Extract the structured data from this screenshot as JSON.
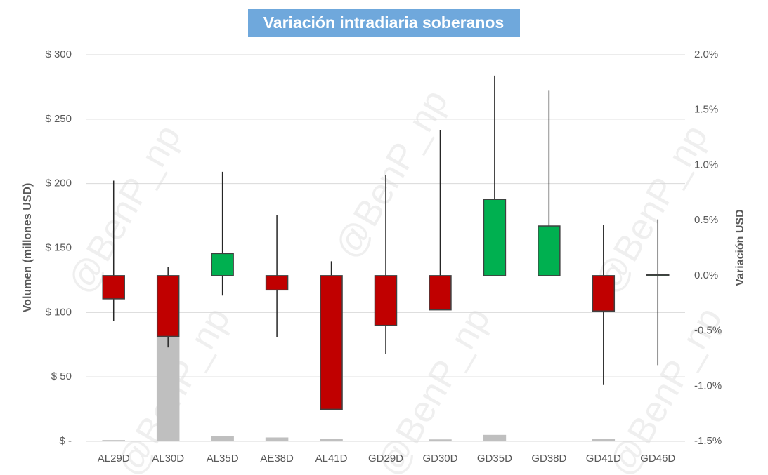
{
  "chart_data": {
    "type": "candlestick",
    "title": "Variación intradiaria soberanos",
    "watermark": "@BenP_np",
    "y_label": "Volumen (millones USD)",
    "y2_label": "Variación USD",
    "categories": [
      "AL29D",
      "AL30D",
      "AL35D",
      "AE38D",
      "AL41D",
      "GD29D",
      "GD30D",
      "GD35D",
      "GD38D",
      "GD41D",
      "GD46D"
    ],
    "volume": {
      "color": "#bfbfbf",
      "values": [
        1,
        81,
        4,
        3,
        2,
        0,
        1.5,
        5,
        0,
        2,
        0
      ]
    },
    "candles": {
      "up_color": "#00b050",
      "down_color": "#c00000",
      "edge_color": "#404040",
      "open": [
        0,
        0,
        0,
        0,
        0,
        0,
        0,
        0,
        0,
        0,
        0
      ],
      "high": [
        0.86,
        0.08,
        0.94,
        0.55,
        0.13,
        0.91,
        1.32,
        1.81,
        1.68,
        0.46,
        0.51
      ],
      "low": [
        -0.41,
        -0.65,
        -0.18,
        -0.56,
        -1.21,
        -0.71,
        -0.31,
        0,
        0,
        -0.99,
        -0.81
      ],
      "close": [
        -0.21,
        -0.55,
        0.2,
        -0.13,
        -1.21,
        -0.45,
        -0.31,
        0.69,
        0.45,
        -0.32,
        0.01
      ]
    },
    "ylim": [
      0,
      300
    ],
    "yticks": [
      {
        "value": 0,
        "label": "$ -"
      },
      {
        "value": 50,
        "label": "$ 50"
      },
      {
        "value": 100,
        "label": "$ 100"
      },
      {
        "value": 150,
        "label": "$ 150"
      },
      {
        "value": 200,
        "label": "$ 200"
      },
      {
        "value": 250,
        "label": "$ 250"
      },
      {
        "value": 300,
        "label": "$ 300"
      }
    ],
    "y2lim": [
      -1.5,
      2.0
    ],
    "y2ticks": [
      {
        "value": -1.5,
        "label": "-1.5%"
      },
      {
        "value": -1.0,
        "label": "-1.0%"
      },
      {
        "value": -0.5,
        "label": "-0.5%"
      },
      {
        "value": 0,
        "label": "0.0%"
      },
      {
        "value": 0.5,
        "label": "0.5%"
      },
      {
        "value": 1.0,
        "label": "1.0%"
      },
      {
        "value": 1.5,
        "label": "1.5%"
      },
      {
        "value": 2.0,
        "label": "2.0%"
      }
    ],
    "grid": true
  }
}
